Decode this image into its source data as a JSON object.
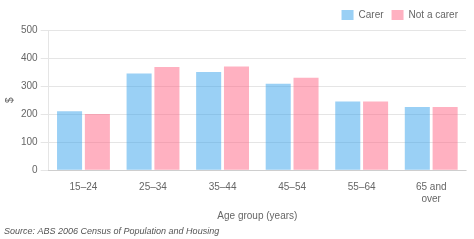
{
  "chart_data": {
    "type": "bar",
    "categories": [
      "15–24",
      "25–34",
      "35–44",
      "45–54",
      "55–64",
      "65 and\nover"
    ],
    "series": [
      {
        "name": "Carer",
        "values": [
          210,
          345,
          350,
          308,
          245,
          225
        ]
      },
      {
        "name": "Not a carer",
        "values": [
          200,
          368,
          370,
          330,
          245,
          225
        ]
      }
    ],
    "xlabel": "Age group (years)",
    "ylabel": "$",
    "ylim": [
      0,
      500
    ],
    "yticks": [
      0,
      100,
      200,
      300,
      400,
      500
    ],
    "grid": true,
    "legend": "upper right",
    "annotations": [
      "Source: ABS 2006 Census of Population and Housing"
    ]
  }
}
